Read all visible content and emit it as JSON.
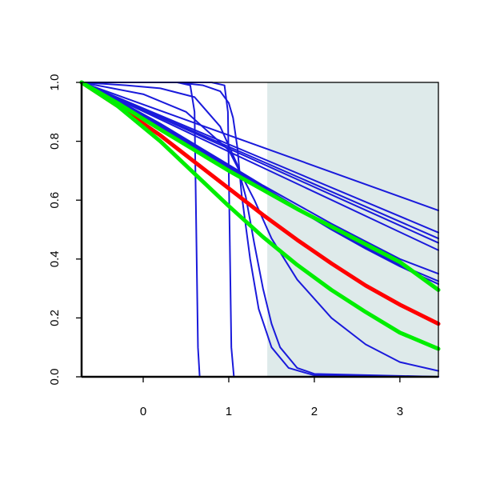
{
  "chart_data": {
    "type": "line",
    "title": "",
    "xlabel": "",
    "ylabel": "",
    "xlim": [
      -0.72,
      3.45
    ],
    "ylim": [
      0.0,
      1.0
    ],
    "x_ticks": [
      0,
      1,
      2,
      3
    ],
    "y_ticks": [
      0.0,
      0.2,
      0.4,
      0.6,
      0.8,
      1.0
    ],
    "x_tick_labels": [
      "0",
      "1",
      "2",
      "3"
    ],
    "y_tick_labels": [
      "0.0",
      "0.2",
      "0.4",
      "0.6",
      "0.8",
      "1.0"
    ],
    "grid": false,
    "legend": "none",
    "shaded_region": {
      "x_start": 1.45,
      "x_end": 3.45,
      "color": "#deeaea"
    },
    "series": [
      {
        "color": "#ff0000",
        "width": 5,
        "x": [
          -0.72,
          -0.3,
          0.2,
          0.6,
          1.0,
          1.4,
          1.8,
          2.2,
          2.6,
          3.0,
          3.45
        ],
        "y": [
          1.0,
          0.92,
          0.82,
          0.73,
          0.64,
          0.55,
          0.465,
          0.385,
          0.31,
          0.245,
          0.18
        ]
      },
      {
        "color": "#00ee00",
        "width": 5,
        "x": [
          -0.72,
          -0.3,
          0.2,
          0.6,
          1.0,
          1.4,
          1.8,
          2.2,
          2.6,
          3.0,
          3.45
        ],
        "y": [
          1.0,
          0.92,
          0.8,
          0.69,
          0.58,
          0.475,
          0.38,
          0.295,
          0.22,
          0.15,
          0.095
        ]
      },
      {
        "color": "#00ee00",
        "width": 5,
        "x": [
          -0.72,
          -0.3,
          0.2,
          0.6,
          1.0,
          1.4,
          1.8,
          2.2,
          2.6,
          3.0,
          3.45
        ],
        "y": [
          1.0,
          0.93,
          0.84,
          0.77,
          0.7,
          0.635,
          0.57,
          0.51,
          0.45,
          0.39,
          0.295
        ]
      },
      {
        "color": "#1a1adb",
        "width": 2,
        "x": [
          -0.72,
          0.0,
          0.4,
          0.55,
          0.6,
          0.62,
          0.64,
          0.66,
          3.45
        ],
        "y": [
          1.0,
          1.0,
          1.0,
          0.99,
          0.9,
          0.5,
          0.1,
          0.0,
          0.0
        ]
      },
      {
        "color": "#1a1adb",
        "width": 2,
        "x": [
          -0.72,
          0.0,
          0.8,
          0.95,
          0.99,
          1.01,
          1.03,
          1.06,
          3.45
        ],
        "y": [
          1.0,
          1.0,
          1.0,
          0.99,
          0.9,
          0.5,
          0.1,
          0.0,
          0.0
        ]
      },
      {
        "color": "#1a1adb",
        "width": 2,
        "x": [
          -0.72,
          -0.2,
          0.2,
          0.6,
          0.9,
          1.1,
          1.2,
          1.3,
          1.4,
          1.5,
          1.6,
          1.8,
          2.0,
          3.45
        ],
        "y": [
          1.0,
          0.99,
          0.98,
          0.95,
          0.85,
          0.72,
          0.61,
          0.45,
          0.3,
          0.18,
          0.1,
          0.03,
          0.01,
          0.0
        ]
      },
      {
        "color": "#1a1adb",
        "width": 2,
        "x": [
          -0.72,
          0.0,
          0.4,
          0.7,
          0.9,
          1.0,
          1.05,
          1.1,
          1.15,
          1.25,
          1.35,
          1.5,
          1.7,
          2.0,
          3.45
        ],
        "y": [
          1.0,
          1.0,
          1.0,
          0.99,
          0.97,
          0.93,
          0.88,
          0.78,
          0.62,
          0.4,
          0.23,
          0.1,
          0.03,
          0.005,
          0.0
        ]
      },
      {
        "color": "#1a1adb",
        "width": 2,
        "x": [
          -0.72,
          0.0,
          0.5,
          1.0,
          1.3,
          1.5,
          1.8,
          2.2,
          2.6,
          3.0,
          3.45
        ],
        "y": [
          1.0,
          0.96,
          0.9,
          0.77,
          0.6,
          0.47,
          0.33,
          0.2,
          0.11,
          0.05,
          0.02
        ]
      },
      {
        "color": "#1a1adb",
        "width": 2,
        "x": [
          -0.72,
          3.45
        ],
        "y": [
          1.0,
          0.565
        ]
      },
      {
        "color": "#1a1adb",
        "width": 2,
        "x": [
          -0.72,
          3.45
        ],
        "y": [
          1.0,
          0.49
        ]
      },
      {
        "color": "#1a1adb",
        "width": 2,
        "x": [
          -0.72,
          3.45
        ],
        "y": [
          1.0,
          0.47
        ]
      },
      {
        "color": "#1a1adb",
        "width": 2,
        "x": [
          -0.72,
          3.45
        ],
        "y": [
          1.0,
          0.455
        ]
      },
      {
        "color": "#1a1adb",
        "width": 2,
        "x": [
          -0.72,
          3.45
        ],
        "y": [
          1.0,
          0.43
        ]
      },
      {
        "color": "#1a1adb",
        "width": 2,
        "x": [
          -0.72,
          -0.3,
          0.2,
          0.6,
          1.0,
          1.4,
          1.8,
          2.2,
          2.6,
          3.0,
          3.45
        ],
        "y": [
          1.0,
          0.94,
          0.86,
          0.79,
          0.72,
          0.65,
          0.585,
          0.52,
          0.46,
          0.4,
          0.35
        ]
      },
      {
        "color": "#1a1adb",
        "width": 2,
        "x": [
          -0.72,
          -0.3,
          0.2,
          0.6,
          1.0,
          1.4,
          1.8,
          2.2,
          2.6,
          3.0,
          3.45
        ],
        "y": [
          1.0,
          0.935,
          0.855,
          0.785,
          0.715,
          0.645,
          0.575,
          0.505,
          0.44,
          0.38,
          0.325
        ]
      },
      {
        "color": "#1a1adb",
        "width": 2,
        "x": [
          -0.72,
          -0.3,
          0.2,
          0.6,
          1.0,
          1.4,
          1.8,
          2.2,
          2.6,
          3.0,
          3.45
        ],
        "y": [
          1.0,
          0.935,
          0.85,
          0.78,
          0.71,
          0.64,
          0.57,
          0.5,
          0.435,
          0.375,
          0.315
        ]
      }
    ]
  }
}
